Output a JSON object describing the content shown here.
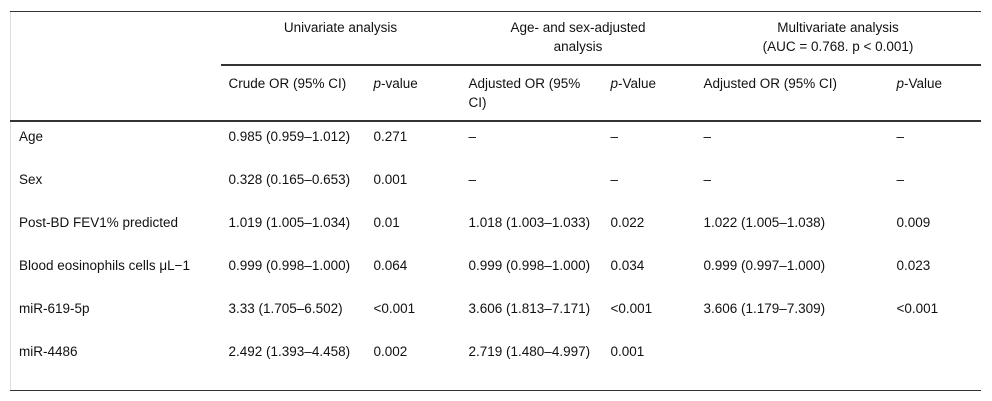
{
  "groups": [
    {
      "label": "Univariate analysis"
    },
    {
      "label": "Age- and sex-adjusted analysis"
    },
    {
      "label": "Multivariate analysis",
      "sub_label": "(AUC = 0.768. p < 0.001)"
    }
  ],
  "columns": [
    "Crude OR (95% CI)",
    "p-value",
    "Adjusted OR (95% CI)",
    "p-Value",
    "Adjusted OR (95% CI)",
    "p-Value"
  ],
  "rows": [
    {
      "label": "Age",
      "cells": [
        "0.985 (0.959–1.012)",
        "0.271",
        "–",
        "–",
        "–",
        "–"
      ]
    },
    {
      "label": "Sex",
      "cells": [
        "0.328 (0.165–0.653)",
        "0.001",
        "–",
        "–",
        "–",
        "–"
      ]
    },
    {
      "label": "Post-BD FEV1% predicted",
      "cells": [
        "1.019 (1.005–1.034)",
        "0.01",
        "1.018 (1.003–1.033)",
        "0.022",
        "1.022 (1.005–1.038)",
        "0.009"
      ]
    },
    {
      "label": "Blood eosinophils cells μL−1",
      "cells": [
        "0.999 (0.998–1.000)",
        "0.064",
        "0.999 (0.998–1.000)",
        "0.034",
        "0.999 (0.997–1.000)",
        "0.023"
      ]
    },
    {
      "label": "miR-619-5p",
      "cells": [
        "3.33 (1.705–6.502)",
        "<0.001",
        "3.606 (1.813–7.171)",
        "<0.001",
        "3.606 (1.179–7.309)",
        "<0.001"
      ]
    },
    {
      "label": "miR-4486",
      "cells": [
        "2.492 (1.393–4.458)",
        "0.002",
        "2.719 (1.480–4.997)",
        "0.001",
        "",
        ""
      ]
    }
  ]
}
